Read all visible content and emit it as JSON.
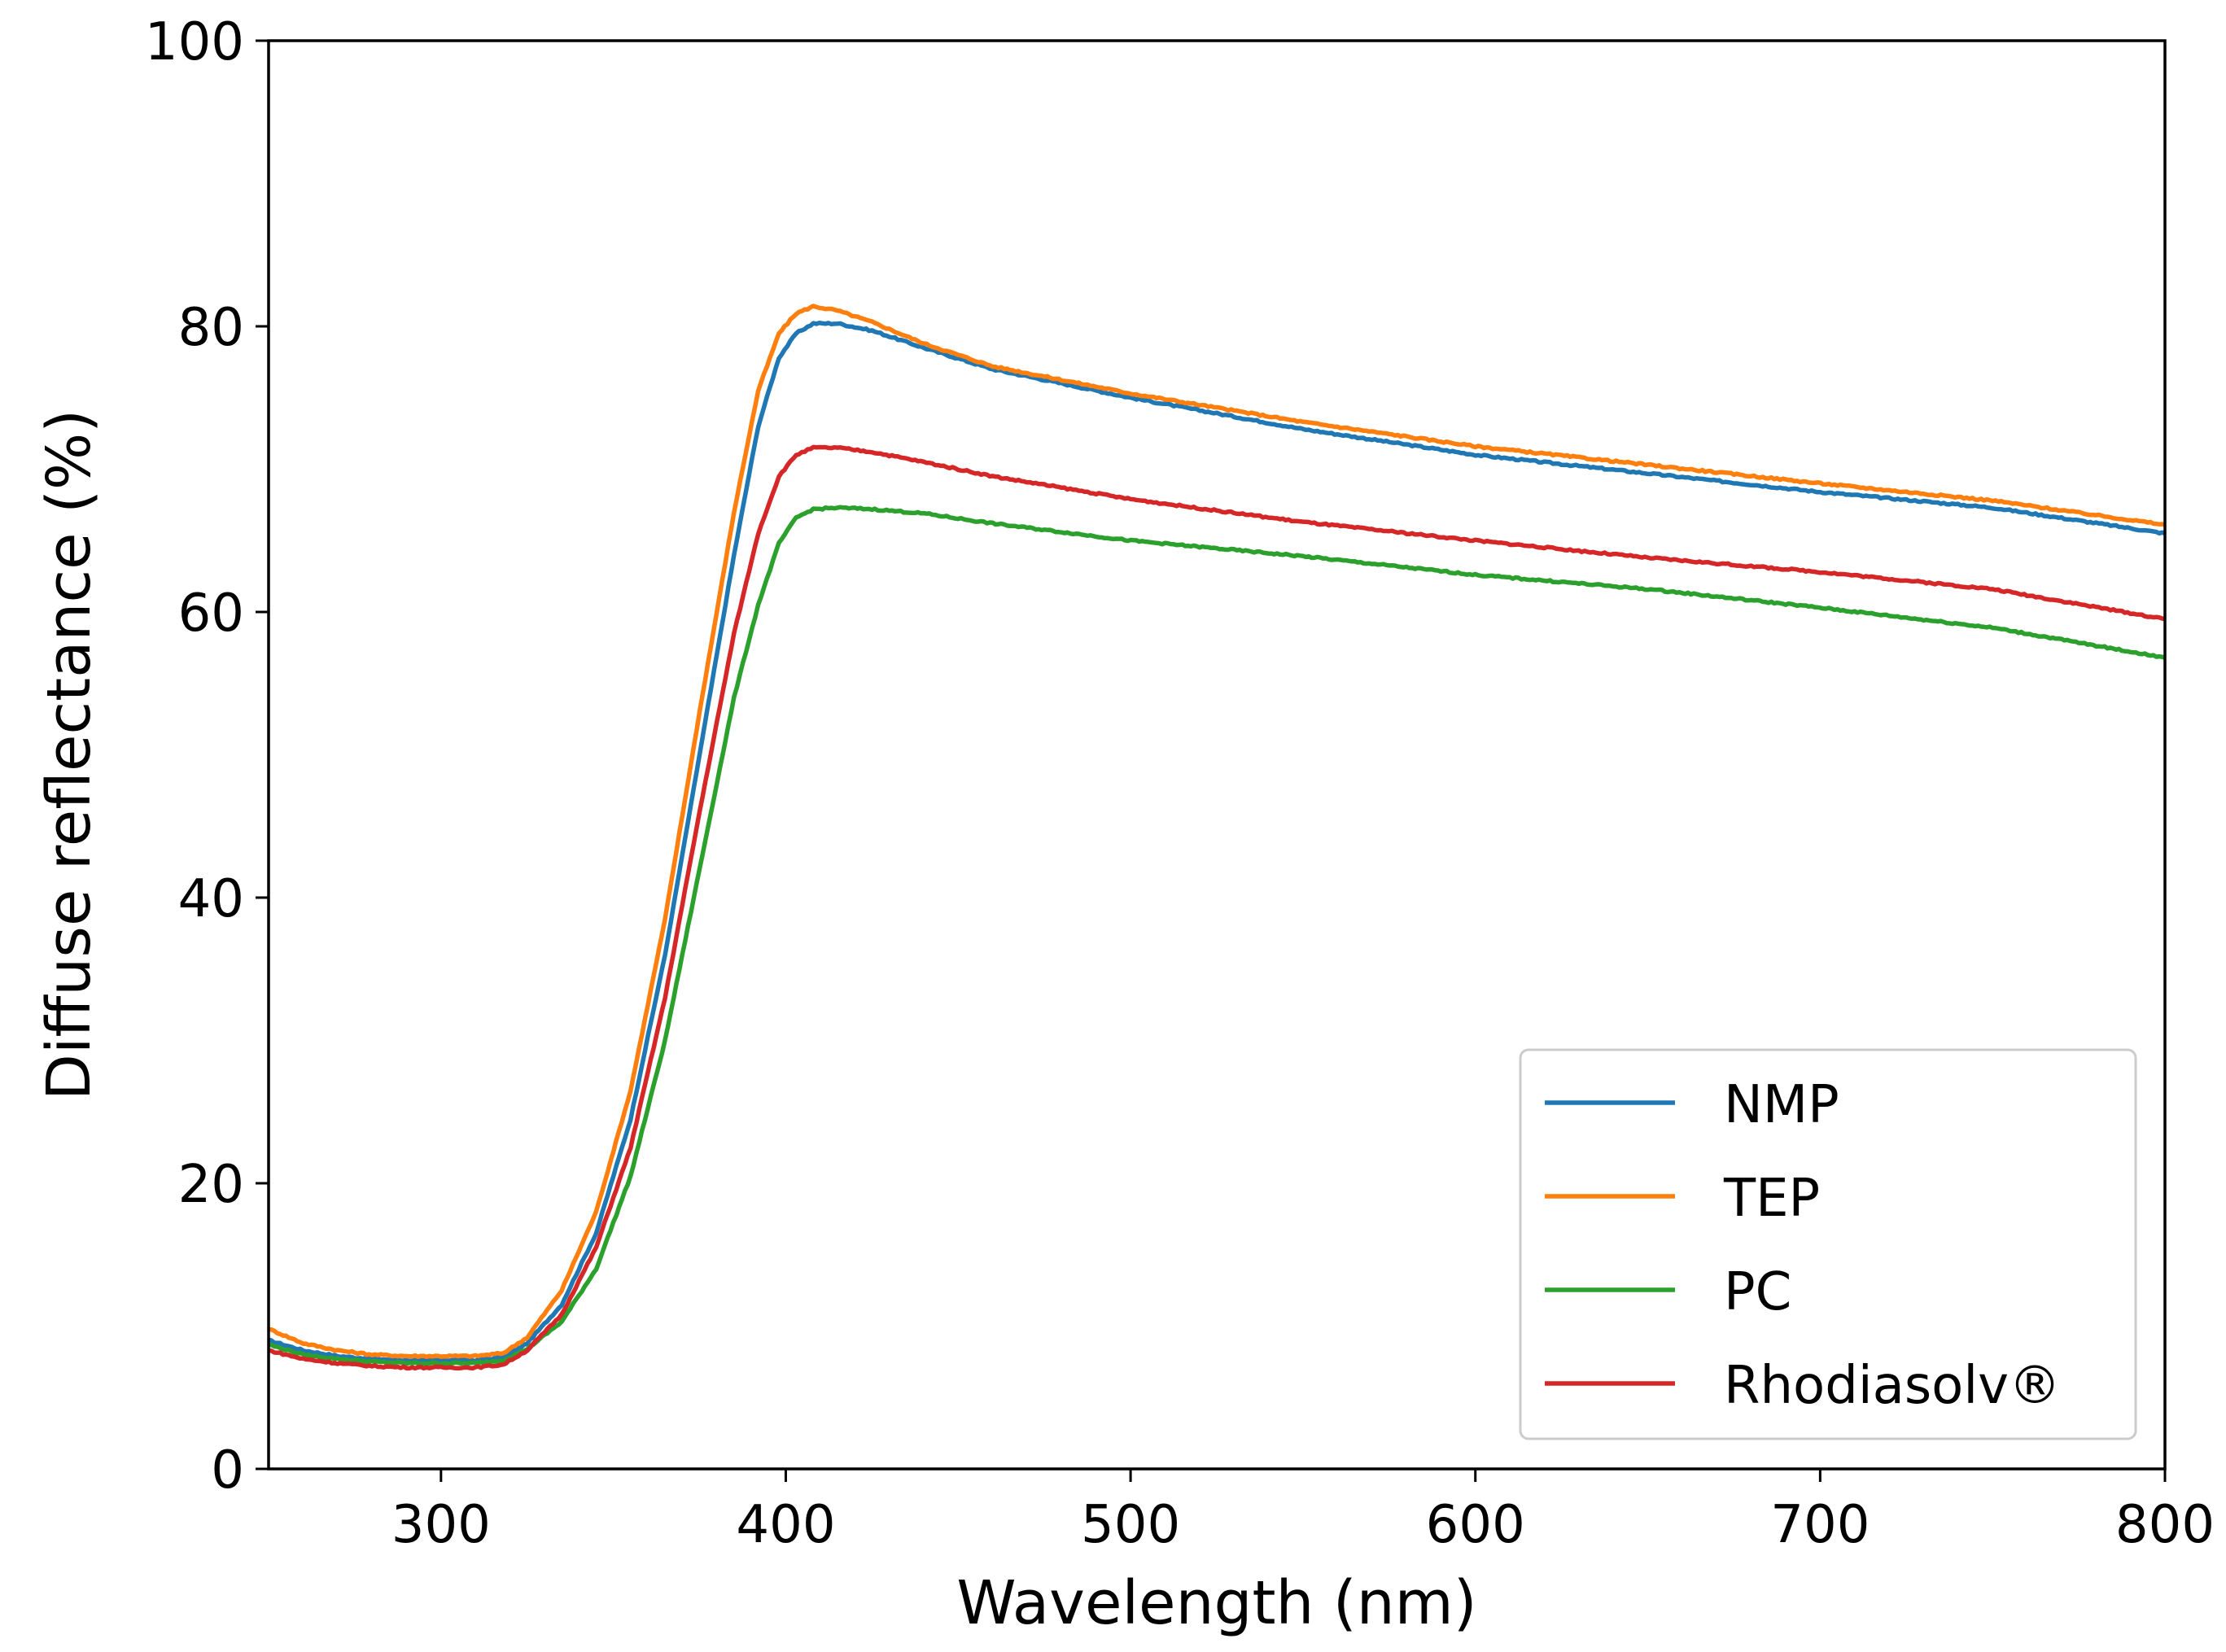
{
  "chart_data": {
    "type": "line",
    "title": "",
    "xlabel": "Wavelength (nm)",
    "ylabel": "Diffuse reflectance (%)",
    "xlim": [
      250,
      800
    ],
    "ylim": [
      0,
      100
    ],
    "xticks": [
      300,
      400,
      500,
      600,
      700,
      800
    ],
    "yticks": [
      0,
      20,
      40,
      60,
      80,
      100
    ],
    "grid": false,
    "legend_position": "bottom-right",
    "series": [
      {
        "name": "NMP",
        "color": "#1f77b4",
        "x": [
          250,
          260,
          270,
          280,
          290,
          300,
          310,
          318,
          325,
          335,
          345,
          355,
          365,
          375,
          385,
          392,
          398,
          403,
          408,
          415,
          425,
          440,
          460,
          500,
          550,
          600,
          650,
          700,
          750,
          800
        ],
        "y": [
          9.0,
          8.3,
          7.9,
          7.7,
          7.6,
          7.6,
          7.6,
          7.8,
          8.8,
          11.5,
          16.5,
          24.5,
          36.0,
          50.0,
          64.0,
          73.0,
          77.8,
          79.5,
          80.2,
          80.2,
          79.7,
          78.5,
          77.0,
          75.0,
          72.8,
          71.0,
          69.7,
          68.4,
          67.3,
          65.5
        ]
      },
      {
        "name": "TEP",
        "color": "#ff7f0e",
        "x": [
          250,
          260,
          270,
          280,
          290,
          300,
          310,
          318,
          325,
          335,
          345,
          355,
          365,
          375,
          385,
          392,
          398,
          403,
          408,
          415,
          425,
          440,
          460,
          500,
          550,
          600,
          650,
          700,
          750,
          800
        ],
        "y": [
          9.8,
          8.8,
          8.3,
          8.0,
          7.9,
          7.9,
          7.9,
          8.1,
          9.2,
          12.5,
          18.0,
          26.5,
          38.5,
          53.0,
          67.0,
          75.5,
          79.5,
          80.9,
          81.4,
          81.1,
          80.3,
          78.8,
          77.2,
          75.3,
          73.3,
          71.6,
          70.3,
          69.0,
          67.8,
          66.1
        ]
      },
      {
        "name": "PC",
        "color": "#2ca02c",
        "x": [
          250,
          260,
          270,
          280,
          290,
          300,
          310,
          318,
          325,
          335,
          345,
          355,
          365,
          375,
          385,
          392,
          398,
          403,
          408,
          415,
          425,
          440,
          460,
          500,
          550,
          600,
          650,
          700,
          750,
          800
        ],
        "y": [
          8.7,
          8.0,
          7.7,
          7.5,
          7.4,
          7.4,
          7.4,
          7.6,
          8.4,
          10.3,
          14.0,
          20.5,
          30.0,
          42.0,
          54.0,
          60.5,
          64.8,
          66.6,
          67.2,
          67.3,
          67.2,
          66.9,
          66.2,
          65.0,
          63.9,
          62.6,
          61.6,
          60.3,
          58.9,
          56.8
        ]
      },
      {
        "name": "Rhodiasolv®",
        "color": "#d62728",
        "x": [
          250,
          260,
          270,
          280,
          290,
          300,
          310,
          318,
          325,
          335,
          345,
          355,
          365,
          375,
          385,
          392,
          398,
          403,
          408,
          415,
          425,
          440,
          460,
          500,
          550,
          600,
          650,
          700,
          750,
          800
        ],
        "y": [
          8.3,
          7.7,
          7.4,
          7.2,
          7.1,
          7.1,
          7.1,
          7.3,
          8.3,
          10.8,
          15.5,
          22.5,
          33.0,
          46.0,
          58.5,
          65.5,
          69.5,
          71.0,
          71.5,
          71.5,
          71.2,
          70.5,
          69.5,
          67.9,
          66.3,
          65.0,
          63.8,
          62.8,
          61.6,
          59.5
        ]
      }
    ]
  }
}
